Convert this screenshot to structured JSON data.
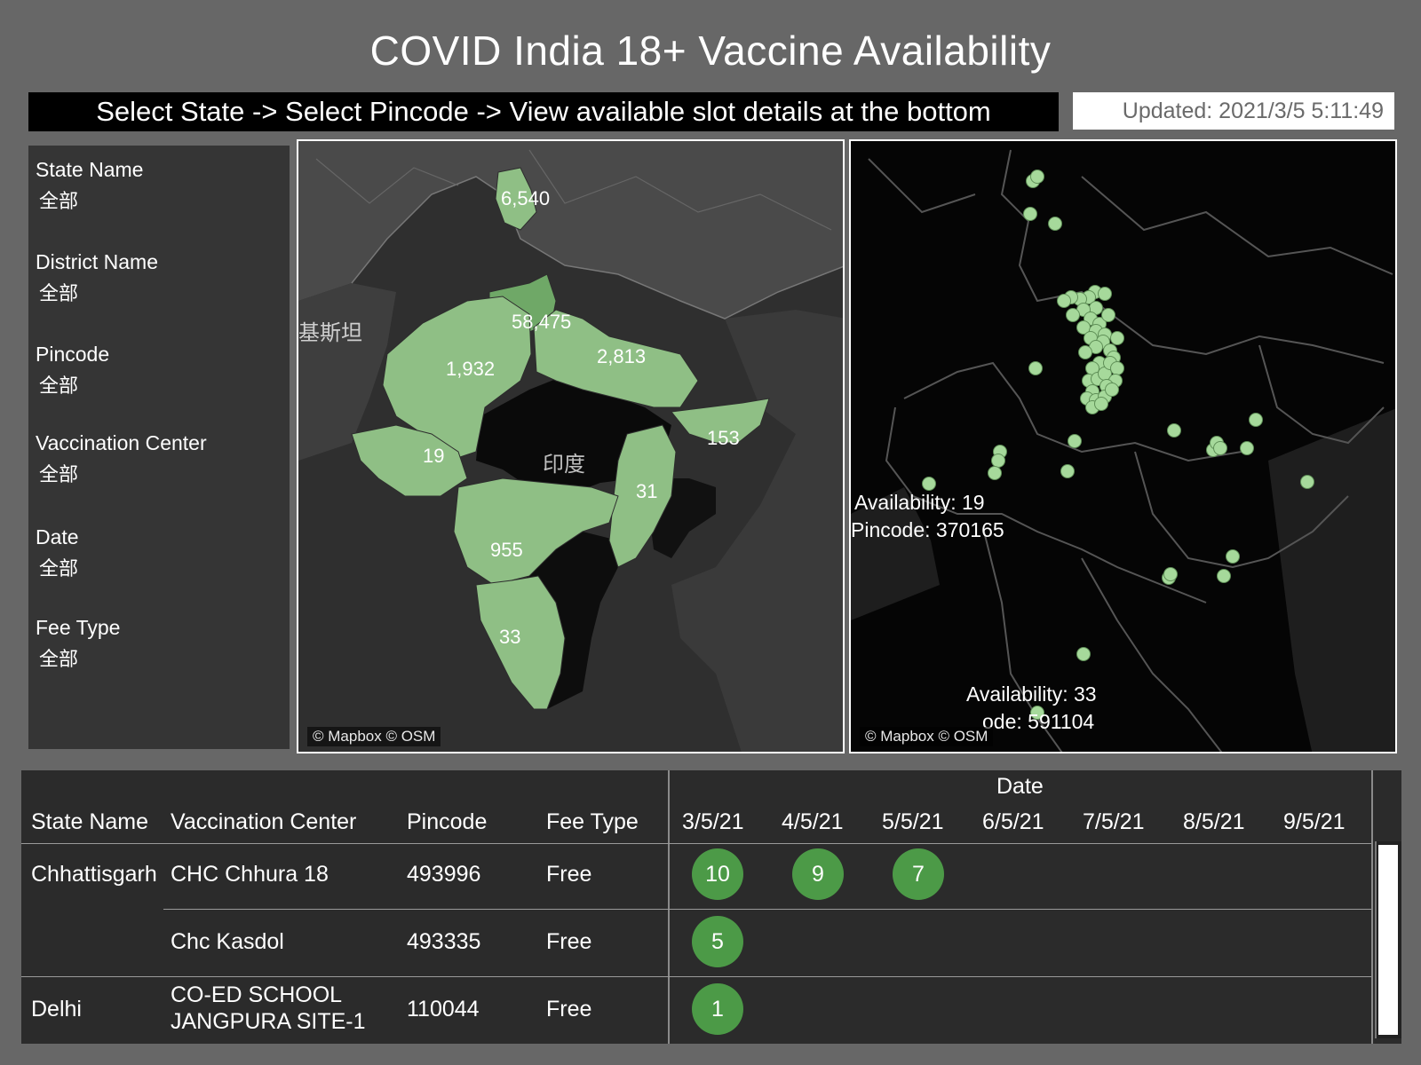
{
  "title": "COVID India 18+ Vaccine Availability",
  "instruction": "Select State -> Select Pincode -> View available slot details at the bottom",
  "updated": "Updated: 2021/3/5 5:11:49",
  "filters": [
    {
      "label": "State Name",
      "value": "全部"
    },
    {
      "label": "District Name",
      "value": "全部"
    },
    {
      "label": "Pincode",
      "value": "全部"
    },
    {
      "label": "Vaccination Center",
      "value": "全部"
    },
    {
      "label": "Date",
      "value": "全部"
    },
    {
      "label": "Fee Type",
      "value": "全部"
    }
  ],
  "map_left": {
    "attribution": "© Mapbox © OSM",
    "place_labels": {
      "pakistan": "基斯坦",
      "india": "印度"
    },
    "state_values": [
      "6,540",
      "58,475",
      "2,813",
      "1,932",
      "153",
      "19",
      "31",
      "955",
      "33"
    ],
    "highlight_color": "#8fbf85",
    "dark_highlight_color": "#6fa867"
  },
  "map_right": {
    "attribution": "© Mapbox © OSM",
    "tooltip1": {
      "line1": "Availability: 19",
      "line2": "Pincode: 370165"
    },
    "tooltip2": {
      "line1": "Availability: 33",
      "line2": "ode: 591104"
    },
    "point_color": "#a6d99b"
  },
  "table": {
    "headers": {
      "state": "State Name",
      "center": "Vaccination Center",
      "pincode": "Pincode",
      "fee": "Fee Type",
      "date_group": "Date"
    },
    "dates": [
      "3/5/21",
      "4/5/21",
      "5/5/21",
      "6/5/21",
      "7/5/21",
      "8/5/21",
      "9/5/21"
    ],
    "rows": [
      {
        "state": "Chhattisgarh",
        "center": "CHC Chhura 18",
        "center2": "",
        "pincode": "493996",
        "fee": "Free",
        "slots": [
          "10",
          "9",
          "7"
        ]
      },
      {
        "state": "",
        "center": "Chc Kasdol",
        "center2": "",
        "pincode": "493335",
        "fee": "Free",
        "slots": [
          "5"
        ]
      },
      {
        "state": "Delhi",
        "center": "CO-ED SCHOOL",
        "center2": "JANGPURA SITE-1",
        "pincode": "110044",
        "fee": "Free",
        "slots": [
          "1"
        ]
      }
    ],
    "bubble_color": "#4c9a47"
  }
}
